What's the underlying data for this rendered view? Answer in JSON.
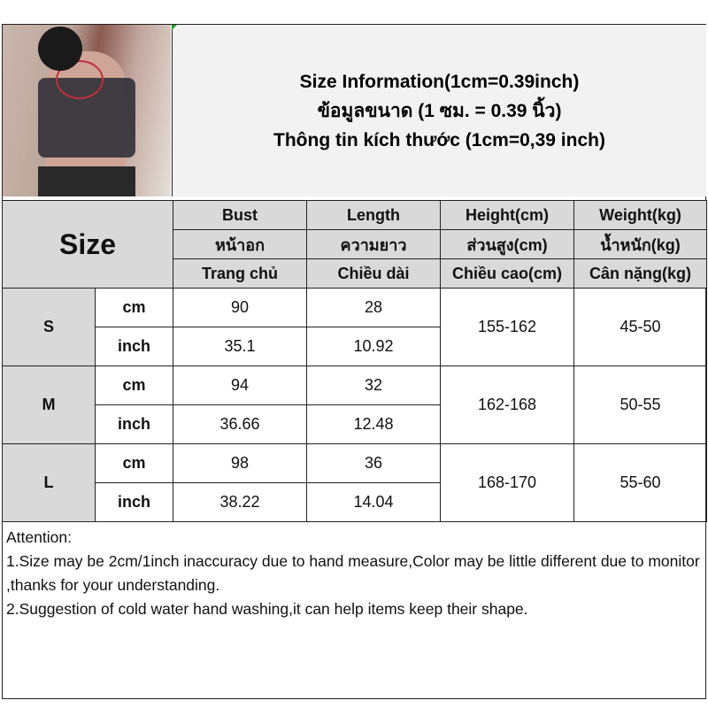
{
  "title": {
    "line1": "Size Information(1cm=0.39inch)",
    "line2": "ข้อมูลขนาด (1 ซม. = 0.39 นิ้ว)",
    "line3": "Thông tin kích thước (1cm=0,39 inch)"
  },
  "table": {
    "size_header": "Size",
    "columns": [
      {
        "en": "Bust",
        "th": "หน้าอก",
        "vi": "Trang chủ"
      },
      {
        "en": "Length",
        "th": "ความยาว",
        "vi": "Chiều dài"
      },
      {
        "en": "Height(cm)",
        "th": "ส่วนสูง(cm)",
        "vi": "Chiều cao(cm)"
      },
      {
        "en": "Weight(kg)",
        "th": "น้ำหนัก(kg)",
        "vi": "Cân nặng(kg)"
      }
    ],
    "rows": [
      {
        "size": "S",
        "cm_label": "cm",
        "inch_label": "inch",
        "bust_cm": "90",
        "length_cm": "28",
        "bust_inch": "35.1",
        "length_inch": "10.92",
        "height": "155-162",
        "weight": "45-50"
      },
      {
        "size": "M",
        "cm_label": "cm",
        "inch_label": "inch",
        "bust_cm": "94",
        "length_cm": "32",
        "bust_inch": "36.66",
        "length_inch": "12.48",
        "height": "162-168",
        "weight": "50-55"
      },
      {
        "size": "L",
        "cm_label": "cm",
        "inch_label": "inch",
        "bust_cm": "98",
        "length_cm": "36",
        "bust_inch": "38.22",
        "length_inch": "14.04",
        "height": "168-170",
        "weight": "55-60"
      }
    ]
  },
  "attention": {
    "heading": "Attention:",
    "note1": "1.Size may be 2cm/1inch inaccuracy due to hand measure,Color may be little different due to monitor ,thanks for your understanding.",
    "note2": "2.Suggestion of cold water hand washing,it can help items keep their shape."
  }
}
